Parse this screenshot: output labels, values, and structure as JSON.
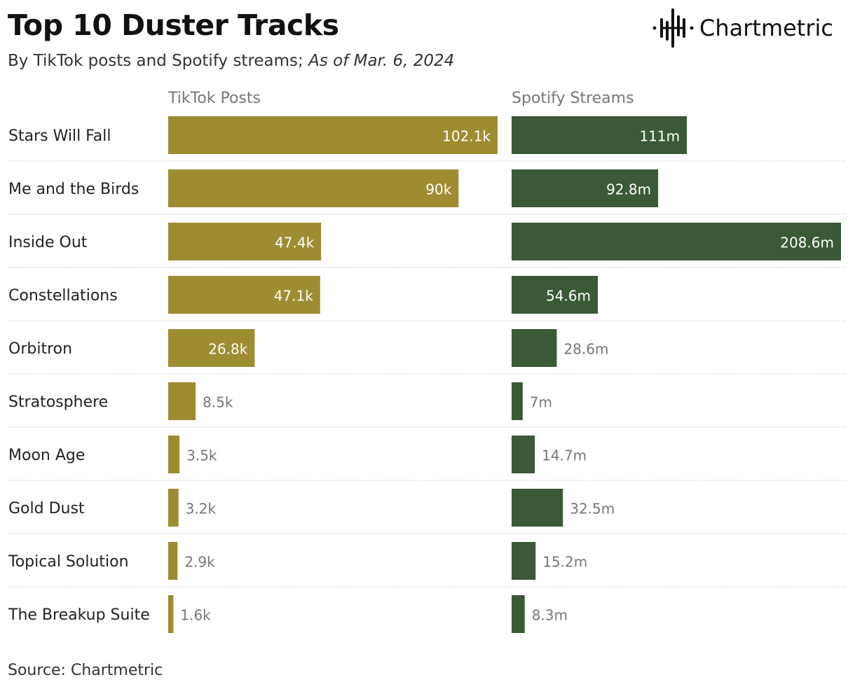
{
  "header": {
    "title": "Top 10 Duster Tracks",
    "subtitle": "By TikTok posts and Spotify streams;",
    "subtitle_date": "As of Mar. 6, 2024"
  },
  "logo": {
    "text": "Chartmetric"
  },
  "source": "Source: Chartmetric",
  "colors": {
    "tiktok": "#9e8c31",
    "spotify": "#3a5936",
    "label_outside": "#777777",
    "separator": "#cccccc"
  },
  "chart_data": {
    "type": "bar",
    "orientation": "horizontal",
    "categories": [
      "Stars Will Fall",
      "Me and the Birds",
      "Inside Out",
      "Constellations",
      "Orbitron",
      "Stratosphere",
      "Moon Age",
      "Gold Dust",
      "Topical Solution",
      "The Breakup Suite"
    ],
    "series": [
      {
        "name": "TikTok Posts",
        "unit": "k",
        "values": [
          102.1,
          90,
          47.4,
          47.1,
          26.8,
          8.5,
          3.5,
          3.2,
          2.9,
          1.6
        ],
        "labels": [
          "102.1k",
          "90k",
          "47.4k",
          "47.1k",
          "26.8k",
          "8.5k",
          "3.5k",
          "3.2k",
          "2.9k",
          "1.6k"
        ]
      },
      {
        "name": "Spotify Streams",
        "unit": "m",
        "values": [
          111,
          92.8,
          208.6,
          54.6,
          28.6,
          7,
          14.7,
          32.5,
          15.2,
          8.3
        ],
        "labels": [
          "111m",
          "92.8m",
          "208.6m",
          "54.6m",
          "28.6m",
          "7m",
          "14.7m",
          "32.5m",
          "15.2m",
          "8.3m"
        ]
      }
    ],
    "grid": false,
    "legend": "column headers"
  }
}
